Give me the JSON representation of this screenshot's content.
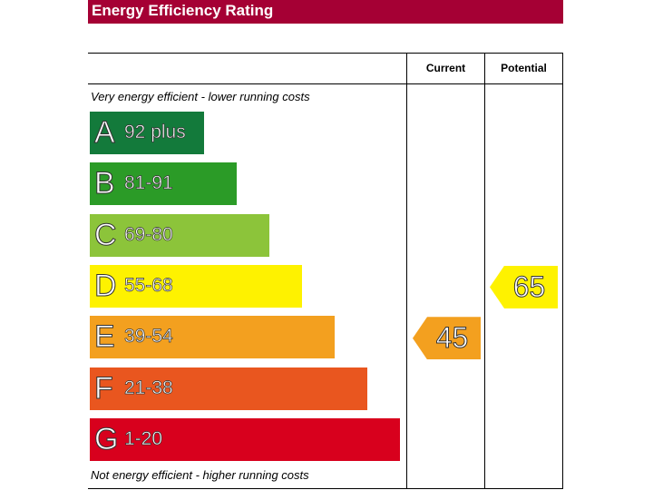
{
  "title": "Energy Efficiency Rating",
  "columns": {
    "current": "Current",
    "potential": "Potential"
  },
  "notes": {
    "top": "Very energy efficient - lower running costs",
    "bottom": "Not energy efficient - higher running costs"
  },
  "chart_data": {
    "type": "bar",
    "bands": [
      {
        "letter": "A",
        "range": "92 plus",
        "min": 92,
        "color": "#008054"
      },
      {
        "letter": "B",
        "range": "81-91",
        "min": 81,
        "color": "#19b459"
      },
      {
        "letter": "C",
        "range": "69-80",
        "min": 69,
        "color": "#8dce46"
      },
      {
        "letter": "D",
        "range": "55-68",
        "min": 55,
        "color": "#ffd500"
      },
      {
        "letter": "E",
        "range": "39-54",
        "min": 39,
        "color": "#fcaa65"
      },
      {
        "letter": "F",
        "range": "21-38",
        "min": 21,
        "color": "#ef8023"
      },
      {
        "letter": "G",
        "range": "1-20",
        "min": 1,
        "color": "#e9153b"
      }
    ],
    "ratings": [
      {
        "label": "Current",
        "value": 45,
        "band": "E"
      },
      {
        "label": "Potential",
        "value": 65,
        "band": "D"
      }
    ]
  },
  "colors": {
    "title_bg": "#a50034",
    "A": "#137a3b",
    "B": "#2b9b27",
    "C": "#8cc43a",
    "D": "#fef200",
    "E": "#f3a01f",
    "F": "#e9561f",
    "G": "#d8001d"
  }
}
